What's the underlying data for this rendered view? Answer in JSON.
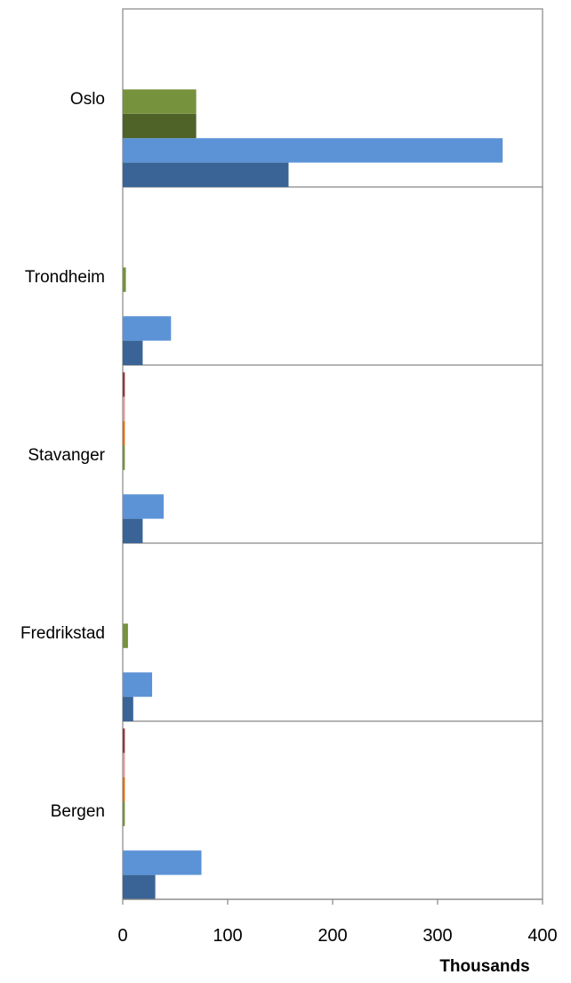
{
  "chart_data": {
    "type": "bar",
    "orientation": "horizontal",
    "title": "",
    "xlabel": "Thousands",
    "ylabel": "",
    "xlim": [
      0,
      400
    ],
    "x_ticks": [
      "0",
      "100",
      "200",
      "300",
      "400"
    ],
    "categories": [
      "Oslo",
      "Trondheim",
      "Stavanger",
      "Fredrikstad",
      "Bergen"
    ],
    "grid": "category separators",
    "legend": "none",
    "series": [
      {
        "color": "#3A6496",
        "values": [
          158,
          19,
          19,
          10,
          31
        ]
      },
      {
        "color": "#5B93D6",
        "values": [
          362,
          46,
          39,
          28,
          75
        ]
      },
      {
        "color": "#4F6228",
        "values": [
          70,
          0,
          0,
          0,
          0
        ]
      },
      {
        "color": "#76923C",
        "values": [
          70,
          3,
          2,
          5,
          2
        ]
      },
      {
        "color": "#E36C09",
        "values": [
          0,
          0,
          2,
          0,
          2
        ]
      },
      {
        "color": "#D99694",
        "values": [
          0,
          0,
          2,
          0,
          2
        ]
      },
      {
        "color": "#953734",
        "values": [
          0,
          0,
          2,
          0,
          2
        ]
      }
    ]
  }
}
